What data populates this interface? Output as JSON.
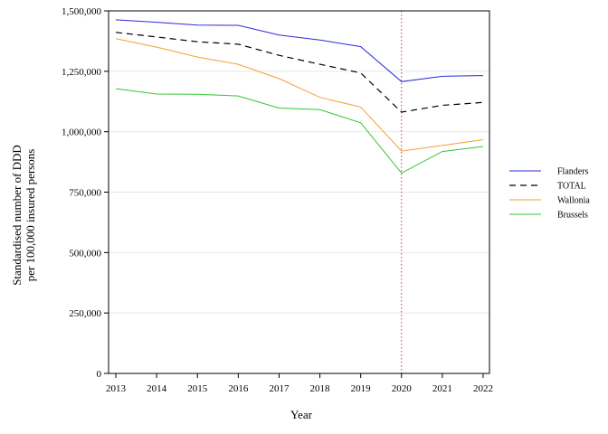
{
  "chart_data": {
    "type": "line",
    "xlabel": "Year",
    "ylabel_lines": [
      "Standardised number of DDD",
      "per 100,000 insured persons"
    ],
    "x": [
      2013,
      2014,
      2015,
      2016,
      2017,
      2018,
      2019,
      2020,
      2021,
      2022
    ],
    "x_tick_labels": [
      "2013",
      "2014",
      "2015",
      "2016",
      "2017",
      "2018",
      "2019",
      "2020",
      "2021",
      "2022"
    ],
    "ylim": [
      0,
      1500000
    ],
    "y_ticks": [
      0,
      250000,
      500000,
      750000,
      1000000,
      1250000,
      1500000
    ],
    "y_tick_labels": [
      "0",
      "250,000",
      "500,000",
      "750,000",
      "1,000,000",
      "1,250,000",
      "1,500,000"
    ],
    "grid": "horizontal, light",
    "reference_line": {
      "x": 2020,
      "style": "dotted",
      "color": "#c0392b"
    },
    "legend_position": "right",
    "series": [
      {
        "name": "Flanders",
        "color": "#2b2bd6",
        "dash": "solid",
        "values": [
          1463000,
          1453000,
          1441000,
          1440000,
          1400000,
          1379000,
          1352000,
          1207000,
          1229000,
          1232000
        ]
      },
      {
        "name": "TOTAL",
        "color": "#000000",
        "dash": "dashed",
        "values": [
          1411000,
          1392000,
          1372000,
          1362000,
          1316000,
          1279000,
          1243000,
          1081000,
          1109000,
          1121000
        ]
      },
      {
        "name": "Wallonia",
        "color": "#f5a033",
        "dash": "solid",
        "values": [
          1385000,
          1350000,
          1309000,
          1279000,
          1220000,
          1142000,
          1102000,
          920000,
          943000,
          967000
        ]
      },
      {
        "name": "Brussels",
        "color": "#33c333",
        "dash": "solid",
        "values": [
          1178000,
          1156000,
          1155000,
          1148000,
          1098000,
          1091000,
          1037000,
          829000,
          918000,
          939000
        ]
      }
    ]
  }
}
